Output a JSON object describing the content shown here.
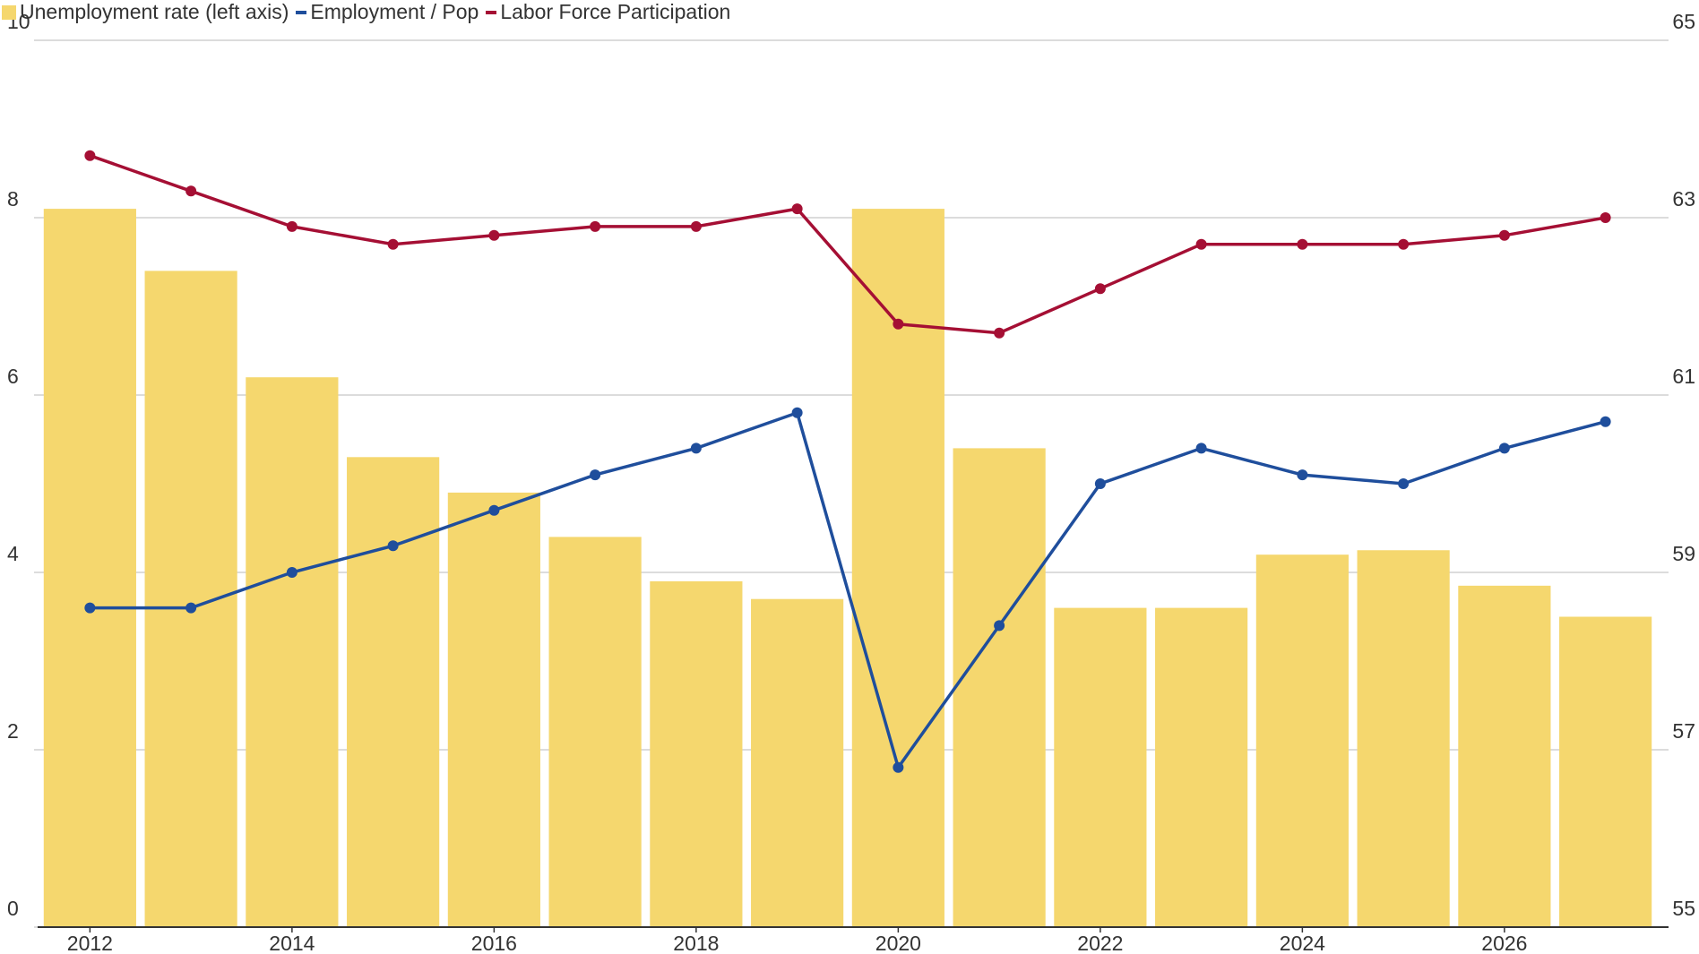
{
  "chart_data": {
    "type": "bar-line",
    "categories": [
      "2012",
      null,
      "2014",
      null,
      "2016",
      null,
      "2018",
      null,
      "2020",
      null,
      "2022",
      null,
      "2024",
      null,
      "2026",
      null
    ],
    "series": [
      {
        "name": "Unemployment rate (left axis)",
        "type": "bar",
        "color": "#f5d76e",
        "axis": "y",
        "values": [
          8.1,
          7.4,
          6.2,
          5.3,
          4.9,
          4.4,
          3.9,
          3.7,
          8.1,
          5.4,
          3.6,
          3.6,
          4.2,
          4.25,
          3.85,
          3.5
        ]
      },
      {
        "name": "Employment / Pop",
        "type": "line",
        "color": "#1f4e9c",
        "axis": "y2",
        "values": [
          58.6,
          58.6,
          59.0,
          59.3,
          59.7,
          60.1,
          60.4,
          60.8,
          56.8,
          58.4,
          60.0,
          60.4,
          60.1,
          60.0,
          60.4,
          60.7
        ]
      },
      {
        "name": "Labor Force Participation",
        "type": "line",
        "color": "#a50f34",
        "axis": "y2",
        "values": [
          63.7,
          63.3,
          62.9,
          62.7,
          62.8,
          62.9,
          62.9,
          63.1,
          61.8,
          61.7,
          62.2,
          62.7,
          62.7,
          62.7,
          62.8,
          63.0
        ]
      }
    ],
    "ylim": [
      0,
      10
    ],
    "yticks": [
      0,
      2,
      4,
      6,
      8,
      10
    ],
    "y2lim": [
      55,
      65
    ],
    "y2ticks": [
      55,
      57,
      59,
      61,
      63,
      65
    ],
    "grid": true,
    "legend": "top-left"
  }
}
